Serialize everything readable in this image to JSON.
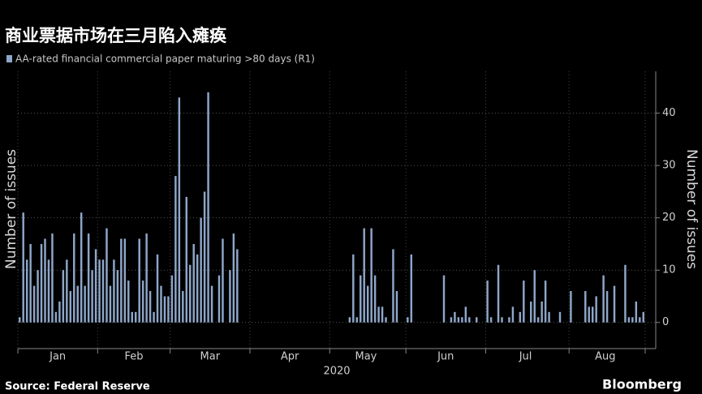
{
  "chart_data": {
    "type": "bar",
    "title": "商业票据市场在三月陷入瘫痪",
    "legend": [
      "AA-rated financial commercial paper maturing >80 days (R1)"
    ],
    "y_label": "Number of issues",
    "y2_label": "Number of issues",
    "x_label": "2020",
    "source": "Source: Federal Reserve",
    "brand": "Bloomberg",
    "color": "#8ea6c9",
    "categories": [
      null,
      null,
      null,
      null,
      null,
      null,
      null,
      null,
      null,
      null,
      null,
      null,
      null,
      null,
      null,
      null,
      null,
      null,
      null,
      null,
      null,
      null,
      null,
      null,
      null,
      null,
      null,
      null,
      null,
      null,
      null,
      null,
      null,
      null,
      null,
      null,
      null,
      null,
      null,
      null,
      null,
      null,
      null,
      null,
      null,
      null,
      null,
      null,
      null,
      null,
      null,
      null,
      null,
      null,
      null,
      null,
      null,
      null,
      null,
      null,
      null,
      null,
      null,
      null,
      null,
      null,
      null,
      null,
      null,
      null,
      null,
      null,
      null,
      null,
      null,
      null,
      null,
      null,
      null,
      null,
      null,
      null,
      null,
      null,
      null,
      null,
      null,
      null,
      null,
      null,
      null,
      null,
      null,
      null,
      null,
      null,
      null,
      null,
      null,
      null,
      null,
      null,
      null,
      null,
      null,
      null,
      null,
      null,
      null,
      null,
      null,
      null,
      null,
      null,
      null,
      null,
      null,
      null,
      null,
      null,
      null,
      null,
      null,
      null,
      null,
      null,
      null,
      null,
      null,
      null,
      null,
      null,
      null,
      null,
      null,
      null,
      null,
      null,
      null,
      null,
      null,
      null,
      null,
      null,
      null,
      null,
      null,
      null,
      null,
      null,
      null,
      null,
      null,
      null,
      null,
      null,
      null,
      null,
      null,
      null,
      null,
      null,
      null,
      null,
      null,
      null,
      null,
      null,
      null,
      null,
      null,
      null,
      null
    ],
    "values": [
      1,
      21,
      12,
      15,
      7,
      10,
      15,
      16,
      12,
      17,
      2,
      4,
      10,
      12,
      6,
      17,
      7,
      21,
      7,
      17,
      10,
      14,
      12,
      12,
      18,
      7,
      12,
      10,
      16,
      16,
      8,
      2,
      2,
      16,
      8,
      17,
      6,
      2,
      13,
      7,
      5,
      5,
      9,
      28,
      43,
      6,
      24,
      11,
      15,
      13,
      20,
      25,
      44,
      7,
      0,
      9,
      16,
      0,
      10,
      17,
      14,
      0,
      0,
      0,
      0,
      0,
      0,
      0,
      0,
      0,
      0,
      0,
      0,
      0,
      0,
      0,
      0,
      0,
      0,
      0,
      0,
      0,
      0,
      0,
      0,
      0,
      0,
      0,
      0,
      0,
      0,
      1,
      13,
      1,
      9,
      18,
      7,
      18,
      9,
      3,
      3,
      1,
      0,
      14,
      6,
      0,
      0,
      1,
      13,
      0,
      0,
      0,
      0,
      0,
      0,
      0,
      0,
      9,
      0,
      1,
      2,
      1,
      1,
      3,
      1,
      0,
      1,
      0,
      0,
      8,
      1,
      0,
      11,
      1,
      0,
      1,
      3,
      0,
      2,
      8,
      0,
      4,
      10,
      1,
      4,
      8,
      2,
      0,
      0,
      2,
      0,
      0,
      6,
      0,
      0,
      0,
      6,
      3,
      3,
      5,
      0,
      9,
      6,
      0,
      7,
      0,
      0,
      11,
      1,
      1,
      4,
      1,
      2
    ],
    "xlim": [
      -0.5,
      172.5
    ],
    "xticks": [
      {
        "value": 10.5,
        "label": "Jan"
      },
      {
        "value": 31.5,
        "label": "Feb"
      },
      {
        "value": 52.5,
        "label": "Mar"
      },
      {
        "value": 74.5,
        "label": "Apr"
      },
      {
        "value": 95.5,
        "label": "May"
      },
      {
        "value": 117.5,
        "label": "Jun"
      },
      {
        "value": 139.5,
        "label": "Jul"
      },
      {
        "value": 161.5,
        "label": "Aug"
      }
    ],
    "xminor": [
      -0.5,
      21.5,
      41.5,
      63.5,
      85.5,
      106.5,
      128.5,
      151.5,
      172.5
    ],
    "ylim": [
      -5,
      48
    ],
    "yticks": [
      0,
      10,
      20,
      30,
      40
    ]
  }
}
